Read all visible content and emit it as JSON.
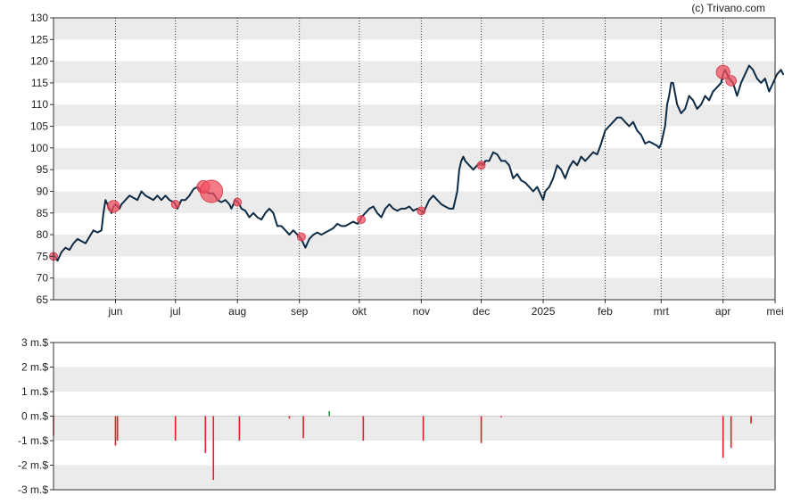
{
  "credit": "(c) Trivano.com",
  "colors": {
    "price_line": "#0d2b45",
    "event_marker": "#f05060",
    "negative_bar": "#e0202a",
    "positive_bar": "#2a8a4a",
    "band": "#ebebeb",
    "frame": "#333333"
  },
  "chart_data": [
    {
      "type": "line",
      "ylim": [
        65,
        130
      ],
      "yticks": [
        "130",
        "125",
        "120",
        "115",
        "110",
        "105",
        "100",
        "95",
        "90",
        "85",
        "80",
        "75",
        "70",
        "65"
      ],
      "xlim": [
        0,
        361
      ],
      "month_ticks": [
        {
          "label": "jun",
          "day": 31
        },
        {
          "label": "jul",
          "day": 61
        },
        {
          "label": "aug",
          "day": 92
        },
        {
          "label": "sep",
          "day": 123
        },
        {
          "label": "okt",
          "day": 153
        },
        {
          "label": "nov",
          "day": 184
        },
        {
          "label": "dec",
          "day": 214
        },
        {
          "label": "2025",
          "day": 245
        },
        {
          "label": "feb",
          "day": 276
        },
        {
          "label": "mrt",
          "day": 304
        },
        {
          "label": "apr",
          "day": 335
        },
        {
          "label": "mei",
          "day": 365
        }
      ],
      "grid": "horizontal bands + dotted vertical month lines",
      "series": [
        {
          "points": [
            [
              0,
              75.5
            ],
            [
              2,
              74
            ],
            [
              4,
              76
            ],
            [
              6,
              77
            ],
            [
              8,
              76.5
            ],
            [
              10,
              78
            ],
            [
              12,
              79
            ],
            [
              14,
              78.5
            ],
            [
              16,
              78
            ],
            [
              18,
              79.5
            ],
            [
              20,
              81
            ],
            [
              22,
              80.5
            ],
            [
              24,
              81
            ],
            [
              25,
              85
            ],
            [
              26,
              88
            ],
            [
              28,
              86
            ],
            [
              29,
              85
            ],
            [
              30,
              86.5
            ],
            [
              31,
              87
            ],
            [
              32,
              86.5
            ],
            [
              33,
              86
            ],
            [
              34,
              87
            ],
            [
              36,
              88
            ],
            [
              38,
              89
            ],
            [
              40,
              88.5
            ],
            [
              42,
              88
            ],
            [
              44,
              90
            ],
            [
              46,
              89
            ],
            [
              48,
              88.5
            ],
            [
              50,
              88
            ],
            [
              52,
              89
            ],
            [
              54,
              88
            ],
            [
              56,
              89
            ],
            [
              58,
              88
            ],
            [
              60,
              87.5
            ],
            [
              61,
              87
            ],
            [
              62,
              86
            ],
            [
              64,
              88
            ],
            [
              66,
              88
            ],
            [
              68,
              89
            ],
            [
              70,
              90.5
            ],
            [
              72,
              91
            ],
            [
              74,
              90
            ],
            [
              76,
              90
            ],
            [
              78,
              89.5
            ],
            [
              80,
              89.5
            ],
            [
              82,
              88
            ],
            [
              84,
              87.5
            ],
            [
              86,
              88
            ],
            [
              88,
              87
            ],
            [
              89,
              86
            ],
            [
              90,
              87
            ],
            [
              91,
              88
            ],
            [
              92,
              87.5
            ],
            [
              93,
              87
            ],
            [
              94,
              86
            ],
            [
              96,
              85.5
            ],
            [
              98,
              84
            ],
            [
              100,
              85
            ],
            [
              102,
              84
            ],
            [
              104,
              83.5
            ],
            [
              106,
              85
            ],
            [
              108,
              86
            ],
            [
              110,
              85
            ],
            [
              112,
              82
            ],
            [
              114,
              82
            ],
            [
              116,
              81
            ],
            [
              118,
              80
            ],
            [
              120,
              81
            ],
            [
              122,
              80
            ],
            [
              123,
              79.5
            ],
            [
              124,
              79
            ],
            [
              125,
              78
            ],
            [
              126,
              77
            ],
            [
              128,
              79
            ],
            [
              130,
              80
            ],
            [
              132,
              80.5
            ],
            [
              134,
              80
            ],
            [
              136,
              80.5
            ],
            [
              138,
              81
            ],
            [
              140,
              81.5
            ],
            [
              142,
              82.5
            ],
            [
              144,
              82
            ],
            [
              146,
              82
            ],
            [
              148,
              82.5
            ],
            [
              150,
              83
            ],
            [
              152,
              82.5
            ],
            [
              153,
              83
            ],
            [
              154,
              84
            ],
            [
              156,
              85
            ],
            [
              158,
              86
            ],
            [
              160,
              86.5
            ],
            [
              162,
              85
            ],
            [
              164,
              84
            ],
            [
              166,
              86
            ],
            [
              168,
              87
            ],
            [
              170,
              86
            ],
            [
              172,
              85.5
            ],
            [
              174,
              86
            ],
            [
              176,
              86
            ],
            [
              178,
              86.5
            ],
            [
              180,
              85.5
            ],
            [
              182,
              86
            ],
            [
              184,
              85.5
            ],
            [
              185,
              85
            ],
            [
              186,
              86
            ],
            [
              188,
              88
            ],
            [
              190,
              89
            ],
            [
              192,
              88
            ],
            [
              194,
              87
            ],
            [
              196,
              86.5
            ],
            [
              198,
              86
            ],
            [
              200,
              86
            ],
            [
              202,
              90
            ],
            [
              203,
              95
            ],
            [
              204,
              97
            ],
            [
              205,
              98
            ],
            [
              206,
              97
            ],
            [
              208,
              96
            ],
            [
              210,
              95
            ],
            [
              212,
              96
            ],
            [
              214,
              96.5
            ],
            [
              215,
              96
            ],
            [
              216,
              97
            ],
            [
              218,
              97
            ],
            [
              220,
              99
            ],
            [
              222,
              98.5
            ],
            [
              224,
              97
            ],
            [
              226,
              97
            ],
            [
              228,
              96
            ],
            [
              230,
              93
            ],
            [
              232,
              94
            ],
            [
              234,
              92.5
            ],
            [
              236,
              92
            ],
            [
              238,
              91
            ],
            [
              240,
              90
            ],
            [
              242,
              91
            ],
            [
              244,
              89
            ],
            [
              245,
              88
            ],
            [
              246,
              90
            ],
            [
              248,
              91
            ],
            [
              250,
              93
            ],
            [
              252,
              96
            ],
            [
              254,
              95
            ],
            [
              256,
              93
            ],
            [
              258,
              95.5
            ],
            [
              260,
              97
            ],
            [
              262,
              96
            ],
            [
              264,
              98
            ],
            [
              266,
              97
            ],
            [
              268,
              98
            ],
            [
              270,
              99
            ],
            [
              272,
              98.5
            ],
            [
              274,
              101
            ],
            [
              276,
              104
            ],
            [
              278,
              105
            ],
            [
              280,
              106
            ],
            [
              282,
              107
            ],
            [
              284,
              107
            ],
            [
              286,
              106
            ],
            [
              288,
              105
            ],
            [
              290,
              106
            ],
            [
              292,
              104
            ],
            [
              294,
              103
            ],
            [
              296,
              101
            ],
            [
              298,
              101.5
            ],
            [
              300,
              101
            ],
            [
              302,
              100.5
            ],
            [
              303,
              100
            ],
            [
              304,
              101
            ],
            [
              306,
              105
            ],
            [
              307,
              110
            ],
            [
              308,
              112
            ],
            [
              309,
              115
            ],
            [
              310,
              115
            ],
            [
              312,
              110
            ],
            [
              314,
              108
            ],
            [
              316,
              109
            ],
            [
              318,
              112
            ],
            [
              320,
              111
            ],
            [
              322,
              109
            ],
            [
              324,
              110
            ],
            [
              326,
              112
            ],
            [
              328,
              111
            ],
            [
              330,
              113
            ],
            [
              332,
              114
            ],
            [
              334,
              115
            ],
            [
              335,
              117
            ],
            [
              336,
              118
            ],
            [
              338,
              116
            ],
            [
              340,
              115
            ],
            [
              342,
              112
            ],
            [
              344,
              115
            ],
            [
              346,
              117
            ],
            [
              348,
              119
            ],
            [
              350,
              118
            ],
            [
              352,
              116
            ],
            [
              354,
              115
            ],
            [
              356,
              116
            ],
            [
              358,
              113
            ],
            [
              360,
              115
            ],
            [
              362,
              117
            ],
            [
              364,
              118
            ],
            [
              365,
              117
            ]
          ]
        }
      ],
      "events": [
        {
          "day": 0,
          "price": 75,
          "size": 1
        },
        {
          "day": 30,
          "price": 86.5,
          "size": 1.5
        },
        {
          "day": 61,
          "price": 87,
          "size": 1
        },
        {
          "day": 75,
          "price": 91,
          "size": 1.6
        },
        {
          "day": 79,
          "price": 90,
          "size": 2.8
        },
        {
          "day": 92,
          "price": 87.5,
          "size": 1
        },
        {
          "day": 124,
          "price": 79.5,
          "size": 1
        },
        {
          "day": 154,
          "price": 83.5,
          "size": 1
        },
        {
          "day": 184,
          "price": 85.5,
          "size": 1
        },
        {
          "day": 214,
          "price": 96,
          "size": 1
        },
        {
          "day": 335,
          "price": 117.5,
          "size": 1.7
        },
        {
          "day": 339,
          "price": 115.5,
          "size": 1.3
        }
      ]
    },
    {
      "type": "bar",
      "ylim": [
        -3,
        3
      ],
      "yticks": [
        "3 m.$",
        "2 m.$",
        "1 m.$",
        "0 m.$",
        "-1 m.$",
        "-2 m.$",
        "-3 m.$"
      ],
      "bars": [
        {
          "day": 0,
          "value": -0.8
        },
        {
          "day": 31,
          "value": -1.2
        },
        {
          "day": 32,
          "value": -1.0
        },
        {
          "day": 61,
          "value": -1.0
        },
        {
          "day": 76,
          "value": -1.5
        },
        {
          "day": 80,
          "value": -2.6
        },
        {
          "day": 93,
          "value": -1.0
        },
        {
          "day": 118,
          "value": -0.1
        },
        {
          "day": 125,
          "value": -0.9
        },
        {
          "day": 138,
          "value": 0.2
        },
        {
          "day": 155,
          "value": -1.0
        },
        {
          "day": 185,
          "value": -1.0
        },
        {
          "day": 214,
          "value": -1.1
        },
        {
          "day": 224,
          "value": -0.05
        },
        {
          "day": 335,
          "value": -1.7
        },
        {
          "day": 339,
          "value": -1.3
        },
        {
          "day": 349,
          "value": -0.3
        }
      ]
    }
  ]
}
